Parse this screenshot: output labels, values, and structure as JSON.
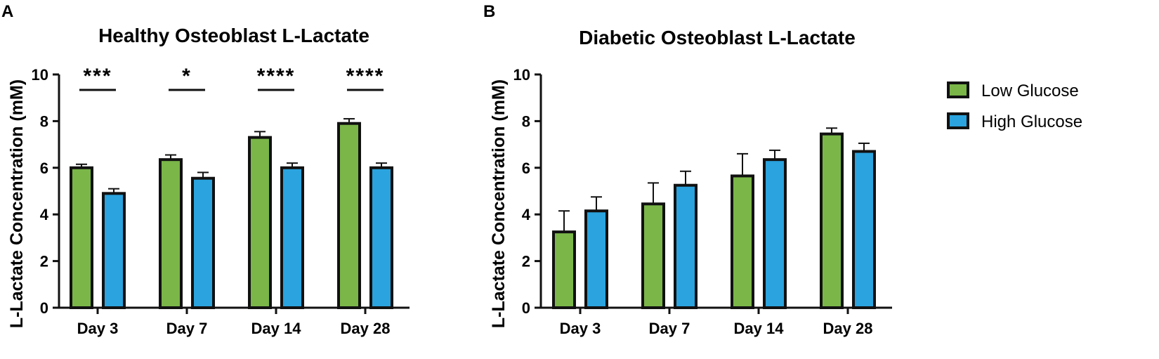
{
  "legend": {
    "items": [
      {
        "label": "Low Glucose",
        "color": "#7ab648"
      },
      {
        "label": "High Glucose",
        "color": "#2aa3de"
      }
    ]
  },
  "chart_data": [
    {
      "panel": "A",
      "type": "bar",
      "title": "Healthy Osteoblast L-Lactate",
      "xlabel": "",
      "ylabel": "L-Lactate Concentration (mM)",
      "ylim": [
        0,
        10
      ],
      "yticks": [
        0,
        2,
        4,
        6,
        8,
        10
      ],
      "categories": [
        "Day 3",
        "Day 7",
        "Day 14",
        "Day 28"
      ],
      "series": [
        {
          "name": "Low Glucose",
          "color": "#7ab648",
          "values": [
            6.0,
            6.35,
            7.3,
            7.9
          ],
          "errors": [
            0.15,
            0.2,
            0.25,
            0.2
          ]
        },
        {
          "name": "High Glucose",
          "color": "#2aa3de",
          "values": [
            4.9,
            5.55,
            6.0,
            6.0
          ],
          "errors": [
            0.2,
            0.25,
            0.2,
            0.2
          ]
        }
      ],
      "significance": [
        "***",
        "*",
        "****",
        "****"
      ]
    },
    {
      "panel": "B",
      "type": "bar",
      "title": "Diabetic Osteoblast L-Lactate",
      "xlabel": "",
      "ylabel": "L-Lactate Concentration (mM)",
      "ylim": [
        0,
        10
      ],
      "yticks": [
        0,
        2,
        4,
        6,
        8,
        10
      ],
      "categories": [
        "Day 3",
        "Day 7",
        "Day 14",
        "Day 28"
      ],
      "series": [
        {
          "name": "Low Glucose",
          "color": "#7ab648",
          "values": [
            3.25,
            4.45,
            5.65,
            7.45
          ],
          "errors": [
            0.9,
            0.9,
            0.95,
            0.25
          ]
        },
        {
          "name": "High Glucose",
          "color": "#2aa3de",
          "values": [
            4.15,
            5.25,
            6.35,
            6.7
          ],
          "errors": [
            0.6,
            0.6,
            0.4,
            0.35
          ]
        }
      ],
      "significance": []
    }
  ]
}
